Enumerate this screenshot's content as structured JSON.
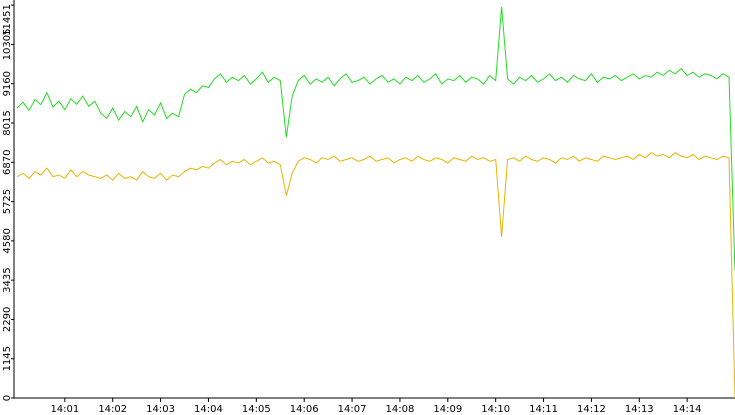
{
  "chart_data": {
    "type": "line",
    "categories": [
      null,
      null,
      null,
      null,
      null,
      null,
      null,
      null,
      "14:01",
      null,
      null,
      null,
      null,
      null,
      null,
      null,
      "14:02",
      null,
      null,
      null,
      null,
      null,
      null,
      null,
      "14:03",
      null,
      null,
      null,
      null,
      null,
      null,
      null,
      "14:04",
      null,
      null,
      null,
      null,
      null,
      null,
      null,
      "14:05",
      null,
      null,
      null,
      null,
      null,
      null,
      null,
      "14:06",
      null,
      null,
      null,
      null,
      null,
      null,
      null,
      "14:07",
      null,
      null,
      null,
      null,
      null,
      null,
      null,
      "14:08",
      null,
      null,
      null,
      null,
      null,
      null,
      null,
      "14:09",
      null,
      null,
      null,
      null,
      null,
      null,
      null,
      "14:10",
      null,
      null,
      null,
      null,
      null,
      null,
      null,
      "14:11",
      null,
      null,
      null,
      null,
      null,
      null,
      null,
      "14:12",
      null,
      null,
      null,
      null,
      null,
      null,
      null,
      "14:13",
      null,
      null,
      null,
      null,
      null,
      null,
      null,
      "14:14",
      null,
      null,
      null,
      null,
      null,
      null,
      null,
      null
    ],
    "series": [
      {
        "color": "#22dd22",
        "values": [
          8450,
          8620,
          8380,
          8700,
          8550,
          8900,
          8480,
          8650,
          8400,
          8720,
          8560,
          8800,
          8500,
          8650,
          8300,
          8150,
          8450,
          8100,
          8350,
          8200,
          8500,
          8050,
          8400,
          8250,
          8600,
          8150,
          8300,
          8200,
          8850,
          9000,
          8900,
          9100,
          9050,
          9300,
          9450,
          9200,
          9350,
          9250,
          9400,
          9150,
          9300,
          9500,
          9200,
          9350,
          9250,
          7600,
          8800,
          9250,
          9400,
          9150,
          9300,
          9200,
          9350,
          9100,
          9300,
          9450,
          9200,
          9250,
          9350,
          9150,
          9300,
          9400,
          9200,
          9300,
          9150,
          9350,
          9250,
          9400,
          9200,
          9300,
          9450,
          9150,
          9300,
          9250,
          9400,
          9200,
          9350,
          9300,
          9150,
          9400,
          9250,
          11400,
          9300,
          9150,
          9350,
          9250,
          9400,
          9200,
          9300,
          9450,
          9250,
          9350,
          9200,
          9400,
          9300,
          9250,
          9450,
          9200,
          9350,
          9300,
          9400,
          9250,
          9350,
          9450,
          9300,
          9400,
          9350,
          9500,
          9400,
          9550,
          9450,
          9600,
          9400,
          9500,
          9350,
          9450,
          9400,
          9300,
          9450,
          9350,
          3700
        ]
      },
      {
        "color": "#e8b400",
        "values": [
          6450,
          6550,
          6400,
          6600,
          6500,
          6700,
          6450,
          6500,
          6400,
          6650,
          6450,
          6600,
          6500,
          6450,
          6400,
          6500,
          6350,
          6550,
          6400,
          6450,
          6350,
          6600,
          6450,
          6400,
          6550,
          6350,
          6500,
          6450,
          6600,
          6700,
          6650,
          6750,
          6700,
          6850,
          6950,
          6800,
          6900,
          6850,
          6950,
          6800,
          6900,
          7000,
          6850,
          6900,
          6800,
          5900,
          6550,
          6900,
          7000,
          6950,
          6850,
          7000,
          6950,
          7050,
          6900,
          6950,
          7000,
          6900,
          6950,
          7050,
          6900,
          6950,
          7000,
          6850,
          6950,
          7000,
          6900,
          7050,
          6950,
          6900,
          7000,
          6950,
          6850,
          7000,
          6950,
          6900,
          7050,
          6950,
          7000,
          6900,
          6950,
          4700,
          6950,
          7000,
          6900,
          7050,
          6950,
          6900,
          7000,
          6950,
          6850,
          7000,
          6950,
          7050,
          6900,
          7000,
          6950,
          6900,
          7050,
          7000,
          6950,
          7000,
          7050,
          6950,
          7100,
          7000,
          7150,
          7050,
          7100,
          7000,
          7150,
          7050,
          7000,
          7100,
          6950,
          7050,
          7000,
          6950,
          7050,
          7000,
          0
        ]
      }
    ],
    "ylim": [
      0,
      11600
    ],
    "yticks": [
      0,
      1145,
      2290,
      3435,
      4580,
      5725,
      6870,
      8015,
      9160,
      10305,
      11451
    ]
  }
}
